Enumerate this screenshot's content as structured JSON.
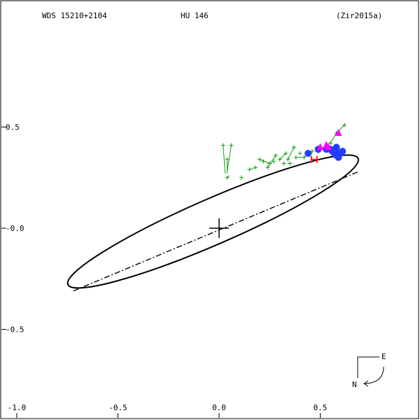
{
  "header": {
    "wds": "WDS 15210+2104",
    "discoverer": "HU  146",
    "reference": "(Zir2015a)"
  },
  "compass": {
    "east": "E",
    "north": "N"
  },
  "colors": {
    "orbit": "#000000",
    "micrometer": "#1a9a1a",
    "speckle": "#1f3fff",
    "other": "#ff00ff",
    "hipparcos": "#ff2020"
  },
  "chart_data": {
    "type": "scatter",
    "title": "",
    "xlabel": "",
    "ylabel": "",
    "xlim": [
      -1.0,
      1.0
    ],
    "ylim": [
      -1.0,
      0.9
    ],
    "x_ticks": [
      -1.0,
      -0.5,
      0.0,
      0.5
    ],
    "x_tick_labels": [
      "-1.0",
      "-0.5",
      "0.0",
      "0.5"
    ],
    "y_ticks": [
      -1.0,
      -0.5,
      0.0,
      0.5
    ],
    "y_tick_labels": [
      "-1.0",
      "-0.5",
      "-0.0",
      "0.5"
    ],
    "orbit_ellipse": {
      "center": [
        -0.03,
        0.033
      ],
      "semi_major": 0.782,
      "semi_minor": 0.113,
      "angle_deg": 23.5
    },
    "line_of_nodes": [
      [
        -0.72,
        -0.31
      ],
      [
        0.69,
        0.28
      ]
    ],
    "primary": [
      0.0,
      0.0
    ],
    "series": [
      {
        "kind": "micrometer",
        "marker": "plus",
        "points": [
          [
            0.02,
            0.41
          ],
          [
            0.06,
            0.41
          ],
          [
            0.04,
            0.34
          ],
          [
            0.04,
            0.25
          ],
          [
            0.11,
            0.25
          ],
          [
            0.15,
            0.29
          ],
          [
            0.18,
            0.3
          ],
          [
            0.2,
            0.34
          ],
          [
            0.22,
            0.33
          ],
          [
            0.24,
            0.3
          ],
          [
            0.25,
            0.32
          ],
          [
            0.27,
            0.33
          ],
          [
            0.28,
            0.36
          ],
          [
            0.3,
            0.34
          ],
          [
            0.32,
            0.32
          ],
          [
            0.33,
            0.37
          ],
          [
            0.34,
            0.34
          ],
          [
            0.35,
            0.32
          ],
          [
            0.37,
            0.4
          ],
          [
            0.38,
            0.35
          ],
          [
            0.4,
            0.37
          ],
          [
            0.42,
            0.35
          ],
          [
            0.46,
            0.38
          ],
          [
            0.49,
            0.38
          ],
          [
            0.52,
            0.4
          ],
          [
            0.55,
            0.42
          ],
          [
            0.58,
            0.47
          ],
          [
            0.62,
            0.51
          ]
        ],
        "residuals": [
          [
            [
              0.02,
              0.41
            ],
            [
              0.03,
              0.27
            ]
          ],
          [
            [
              0.06,
              0.41
            ],
            [
              0.04,
              0.28
            ]
          ],
          [
            [
              0.04,
              0.34
            ],
            [
              0.04,
              0.27
            ]
          ],
          [
            [
              0.04,
              0.25
            ],
            [
              0.05,
              0.26
            ]
          ],
          [
            [
              0.15,
              0.29
            ],
            [
              0.18,
              0.3
            ]
          ],
          [
            [
              0.2,
              0.34
            ],
            [
              0.25,
              0.32
            ]
          ],
          [
            [
              0.24,
              0.3
            ],
            [
              0.28,
              0.36
            ]
          ],
          [
            [
              0.3,
              0.34
            ],
            [
              0.33,
              0.37
            ]
          ],
          [
            [
              0.34,
              0.34
            ],
            [
              0.37,
              0.4
            ]
          ],
          [
            [
              0.38,
              0.35
            ],
            [
              0.42,
              0.35
            ]
          ],
          [
            [
              0.42,
              0.35
            ],
            [
              0.46,
              0.38
            ]
          ],
          [
            [
              0.55,
              0.42
            ],
            [
              0.58,
              0.47
            ]
          ],
          [
            [
              0.58,
              0.47
            ],
            [
              0.62,
              0.51
            ]
          ]
        ]
      },
      {
        "kind": "speckle",
        "marker": "circle",
        "points": [
          [
            0.44,
            0.37
          ],
          [
            0.49,
            0.39
          ],
          [
            0.53,
            0.39
          ],
          [
            0.56,
            0.38
          ],
          [
            0.57,
            0.37
          ],
          [
            0.58,
            0.38
          ],
          [
            0.58,
            0.36
          ],
          [
            0.59,
            0.35
          ],
          [
            0.6,
            0.37
          ],
          [
            0.61,
            0.38
          ],
          [
            0.58,
            0.4
          ],
          [
            0.55,
            0.39
          ]
        ]
      },
      {
        "kind": "other",
        "marker": "triangle",
        "points": [
          [
            0.5,
            0.4
          ],
          [
            0.53,
            0.41
          ],
          [
            0.54,
            0.4
          ],
          [
            0.59,
            0.47
          ]
        ]
      },
      {
        "kind": "hipparcos",
        "marker": "H",
        "points": [
          [
            0.47,
            0.34
          ]
        ]
      }
    ]
  }
}
